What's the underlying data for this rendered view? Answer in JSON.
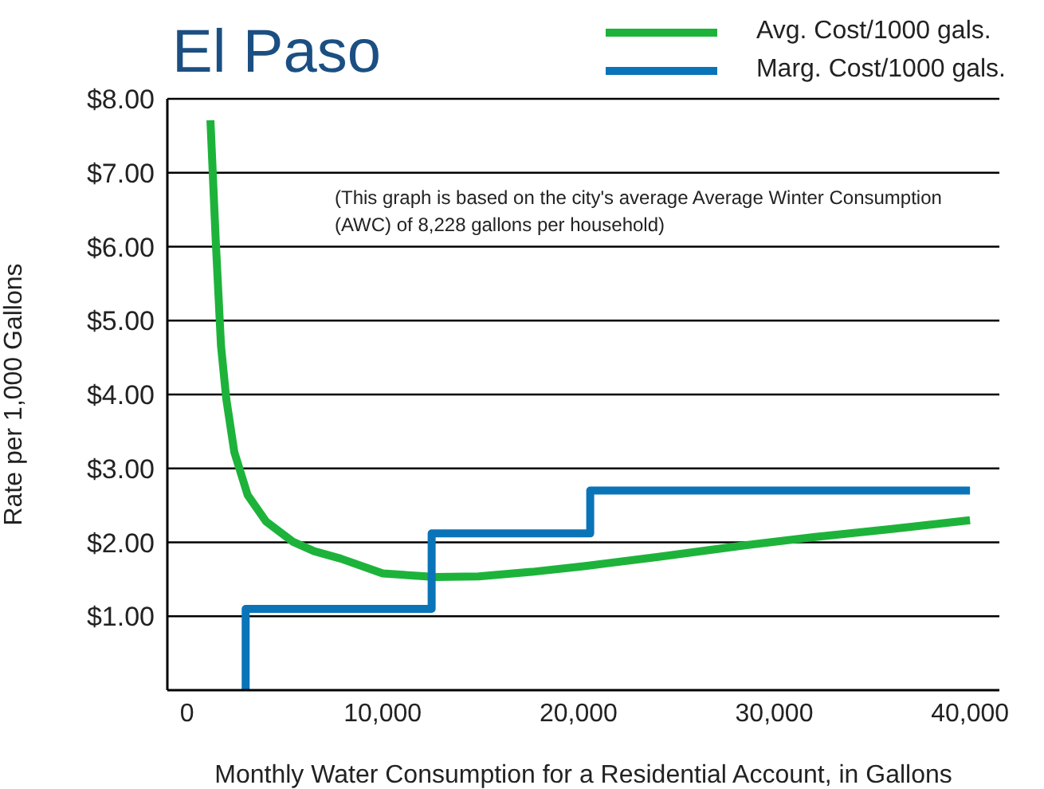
{
  "chart_data": {
    "type": "line",
    "title": "El Paso",
    "xlabel": "Monthly Water Consumption for a Residential Account, in Gallons",
    "ylabel": "Rate per 1,000 Gallons",
    "annotations": [
      "(This graph is based on the city's average Average Winter Consumption (AWC) of 8,228 gallons per household)"
    ],
    "series": [
      {
        "name": "Avg. Cost/1000 gals.",
        "color": "#1db33a",
        "x": [
          1200,
          1470,
          1740,
          2010,
          2420,
          3100,
          4050,
          5400,
          6500,
          7850,
          10000,
          12700,
          14900,
          17600,
          20350,
          24000,
          28500,
          32000,
          36000,
          40000
        ],
        "values": [
          7.71,
          6.09,
          4.66,
          3.94,
          3.22,
          2.64,
          2.28,
          2.01,
          1.88,
          1.78,
          1.58,
          1.53,
          1.54,
          1.6,
          1.68,
          1.8,
          1.96,
          2.07,
          2.18,
          2.3
        ]
      },
      {
        "name": "Marg. Cost/1000 gals.",
        "color": "#0a74b9",
        "x": [
          3000,
          3000,
          12500,
          12500,
          20600,
          20600,
          40000
        ],
        "values": [
          0,
          1.1,
          1.1,
          2.12,
          2.12,
          2.7,
          2.7
        ]
      }
    ],
    "xlim": [
      -1000,
      41500
    ],
    "ylim": [
      0,
      8
    ],
    "xticks": [
      {
        "value": 0,
        "label": "0"
      },
      {
        "value": 10000,
        "label": "10,000"
      },
      {
        "value": 20000,
        "label": "20,000"
      },
      {
        "value": 30000,
        "label": "30,000"
      },
      {
        "value": 40000,
        "label": "40,000"
      }
    ],
    "yticks": [
      {
        "value": 1,
        "label": "$1.00"
      },
      {
        "value": 2,
        "label": "$2.00"
      },
      {
        "value": 3,
        "label": "$3.00"
      },
      {
        "value": 4,
        "label": "$4.00"
      },
      {
        "value": 5,
        "label": "$5.00"
      },
      {
        "value": 6,
        "label": "$6.00"
      },
      {
        "value": 7,
        "label": "$7.00"
      },
      {
        "value": 8,
        "label": "$8.00"
      }
    ],
    "grid": "y",
    "legend": "top right",
    "marker": "none"
  }
}
